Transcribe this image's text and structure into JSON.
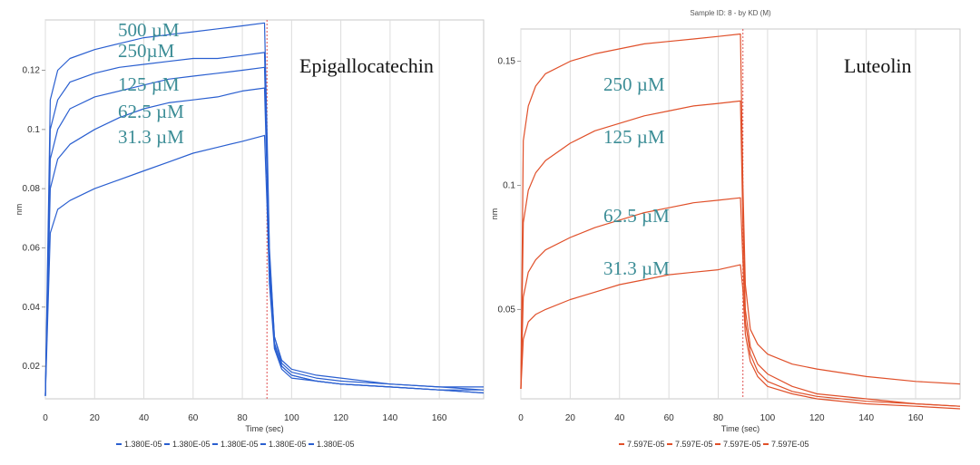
{
  "chart_data": [
    {
      "type": "line",
      "compound_label": "Epigallocatechin",
      "top_caption": "",
      "xlabel": "Time (sec)",
      "ylabel": "nm",
      "xlim": [
        0,
        178
      ],
      "ylim": [
        0.009,
        0.137
      ],
      "xticks": [
        0,
        20,
        40,
        60,
        80,
        100,
        120,
        140,
        160
      ],
      "yticks": [
        0.02,
        0.04,
        0.06,
        0.08,
        0.1,
        0.12
      ],
      "dissociation_start": 90,
      "color": "#2a5fd0",
      "legend": [
        "1.380E-05",
        "1.380E-05",
        "1.380E-05",
        "1.380E-05",
        "1.380E-05"
      ],
      "series": [
        {
          "name": "500 µM",
          "concentration_label": "500 µM",
          "x": [
            0,
            2,
            5,
            10,
            20,
            30,
            40,
            50,
            60,
            70,
            80,
            89,
            90,
            91,
            93,
            96,
            100,
            110,
            120,
            140,
            160,
            178
          ],
          "y": [
            0.01,
            0.11,
            0.12,
            0.124,
            0.127,
            0.129,
            0.131,
            0.132,
            0.133,
            0.134,
            0.135,
            0.136,
            0.1,
            0.06,
            0.03,
            0.022,
            0.019,
            0.017,
            0.016,
            0.014,
            0.013,
            0.013
          ]
        },
        {
          "name": "250 µM",
          "concentration_label": "250µM",
          "x": [
            0,
            2,
            5,
            10,
            20,
            30,
            40,
            50,
            60,
            70,
            80,
            89,
            90,
            91,
            93,
            96,
            100,
            110,
            120,
            140,
            160,
            178
          ],
          "y": [
            0.01,
            0.1,
            0.11,
            0.116,
            0.119,
            0.121,
            0.122,
            0.123,
            0.124,
            0.124,
            0.125,
            0.126,
            0.095,
            0.058,
            0.03,
            0.021,
            0.018,
            0.016,
            0.015,
            0.014,
            0.013,
            0.012
          ]
        },
        {
          "name": "125 µM",
          "concentration_label": "125 µM",
          "x": [
            0,
            2,
            5,
            10,
            20,
            30,
            40,
            50,
            60,
            70,
            80,
            89,
            90,
            91,
            93,
            96,
            100,
            110,
            120,
            140,
            160,
            178
          ],
          "y": [
            0.01,
            0.09,
            0.1,
            0.107,
            0.111,
            0.113,
            0.115,
            0.117,
            0.118,
            0.119,
            0.12,
            0.121,
            0.09,
            0.055,
            0.028,
            0.02,
            0.017,
            0.015,
            0.014,
            0.013,
            0.012,
            0.012
          ]
        },
        {
          "name": "62.5 µM",
          "concentration_label": "62.5 µM",
          "x": [
            0,
            2,
            5,
            10,
            20,
            30,
            40,
            50,
            60,
            70,
            80,
            89,
            90,
            91,
            93,
            96,
            100,
            110,
            120,
            140,
            160,
            178
          ],
          "y": [
            0.01,
            0.08,
            0.09,
            0.095,
            0.1,
            0.104,
            0.107,
            0.109,
            0.11,
            0.111,
            0.113,
            0.114,
            0.085,
            0.052,
            0.027,
            0.02,
            0.017,
            0.015,
            0.014,
            0.013,
            0.012,
            0.011
          ]
        },
        {
          "name": "31.3 µM",
          "concentration_label": "31.3 µM",
          "x": [
            0,
            2,
            5,
            10,
            20,
            30,
            40,
            50,
            60,
            70,
            80,
            89,
            90,
            91,
            93,
            96,
            100,
            110,
            120,
            140,
            160,
            178
          ],
          "y": [
            0.01,
            0.065,
            0.073,
            0.076,
            0.08,
            0.083,
            0.086,
            0.089,
            0.092,
            0.094,
            0.096,
            0.098,
            0.075,
            0.048,
            0.026,
            0.019,
            0.016,
            0.015,
            0.014,
            0.013,
            0.012,
            0.011
          ]
        }
      ]
    },
    {
      "type": "line",
      "compound_label": "Luteolin",
      "top_caption": "Sample ID: 8 - by KD (M)",
      "xlabel": "Time (sec)",
      "ylabel": "nm",
      "xlim": [
        0,
        178
      ],
      "ylim": [
        0.014,
        0.163
      ],
      "xticks": [
        0,
        20,
        40,
        60,
        80,
        100,
        120,
        140,
        160
      ],
      "yticks": [
        0.05,
        0.1,
        0.15
      ],
      "dissociation_start": 90,
      "color": "#e0502a",
      "legend": [
        "7.597E-05",
        "7.597E-05",
        "7.597E-05",
        "7.597E-05"
      ],
      "series": [
        {
          "name": "250 µM",
          "concentration_label": "250 µM",
          "x": [
            0,
            1,
            3,
            6,
            10,
            20,
            30,
            40,
            50,
            60,
            70,
            80,
            89,
            90,
            91,
            93,
            96,
            100,
            110,
            120,
            140,
            160,
            178
          ],
          "y": [
            0.018,
            0.118,
            0.132,
            0.14,
            0.145,
            0.15,
            0.153,
            0.155,
            0.157,
            0.158,
            0.159,
            0.16,
            0.161,
            0.1,
            0.06,
            0.042,
            0.036,
            0.032,
            0.028,
            0.026,
            0.023,
            0.021,
            0.02
          ]
        },
        {
          "name": "125 µM",
          "concentration_label": "125 µM",
          "x": [
            0,
            1,
            3,
            6,
            10,
            20,
            30,
            40,
            50,
            60,
            70,
            80,
            89,
            90,
            91,
            93,
            96,
            100,
            110,
            120,
            140,
            160,
            178
          ],
          "y": [
            0.018,
            0.085,
            0.098,
            0.105,
            0.11,
            0.117,
            0.122,
            0.125,
            0.128,
            0.13,
            0.132,
            0.133,
            0.134,
            0.085,
            0.05,
            0.035,
            0.028,
            0.024,
            0.019,
            0.016,
            0.014,
            0.012,
            0.011
          ]
        },
        {
          "name": "62.5 µM",
          "concentration_label": "62.5 µM",
          "x": [
            0,
            1,
            3,
            6,
            10,
            20,
            30,
            40,
            50,
            60,
            70,
            80,
            89,
            90,
            91,
            93,
            96,
            100,
            110,
            120,
            140,
            160,
            178
          ],
          "y": [
            0.018,
            0.055,
            0.065,
            0.07,
            0.074,
            0.079,
            0.083,
            0.086,
            0.089,
            0.091,
            0.093,
            0.094,
            0.095,
            0.07,
            0.045,
            0.032,
            0.025,
            0.021,
            0.017,
            0.015,
            0.013,
            0.012,
            0.011
          ]
        },
        {
          "name": "31.3 µM",
          "concentration_label": "31.3 µM",
          "x": [
            0,
            1,
            3,
            6,
            10,
            20,
            30,
            40,
            50,
            60,
            70,
            80,
            89,
            90,
            91,
            93,
            96,
            100,
            110,
            120,
            140,
            160,
            178
          ],
          "y": [
            0.018,
            0.038,
            0.045,
            0.048,
            0.05,
            0.054,
            0.057,
            0.06,
            0.062,
            0.064,
            0.065,
            0.066,
            0.068,
            0.058,
            0.04,
            0.029,
            0.023,
            0.019,
            0.016,
            0.014,
            0.012,
            0.011,
            0.01
          ]
        }
      ]
    }
  ]
}
